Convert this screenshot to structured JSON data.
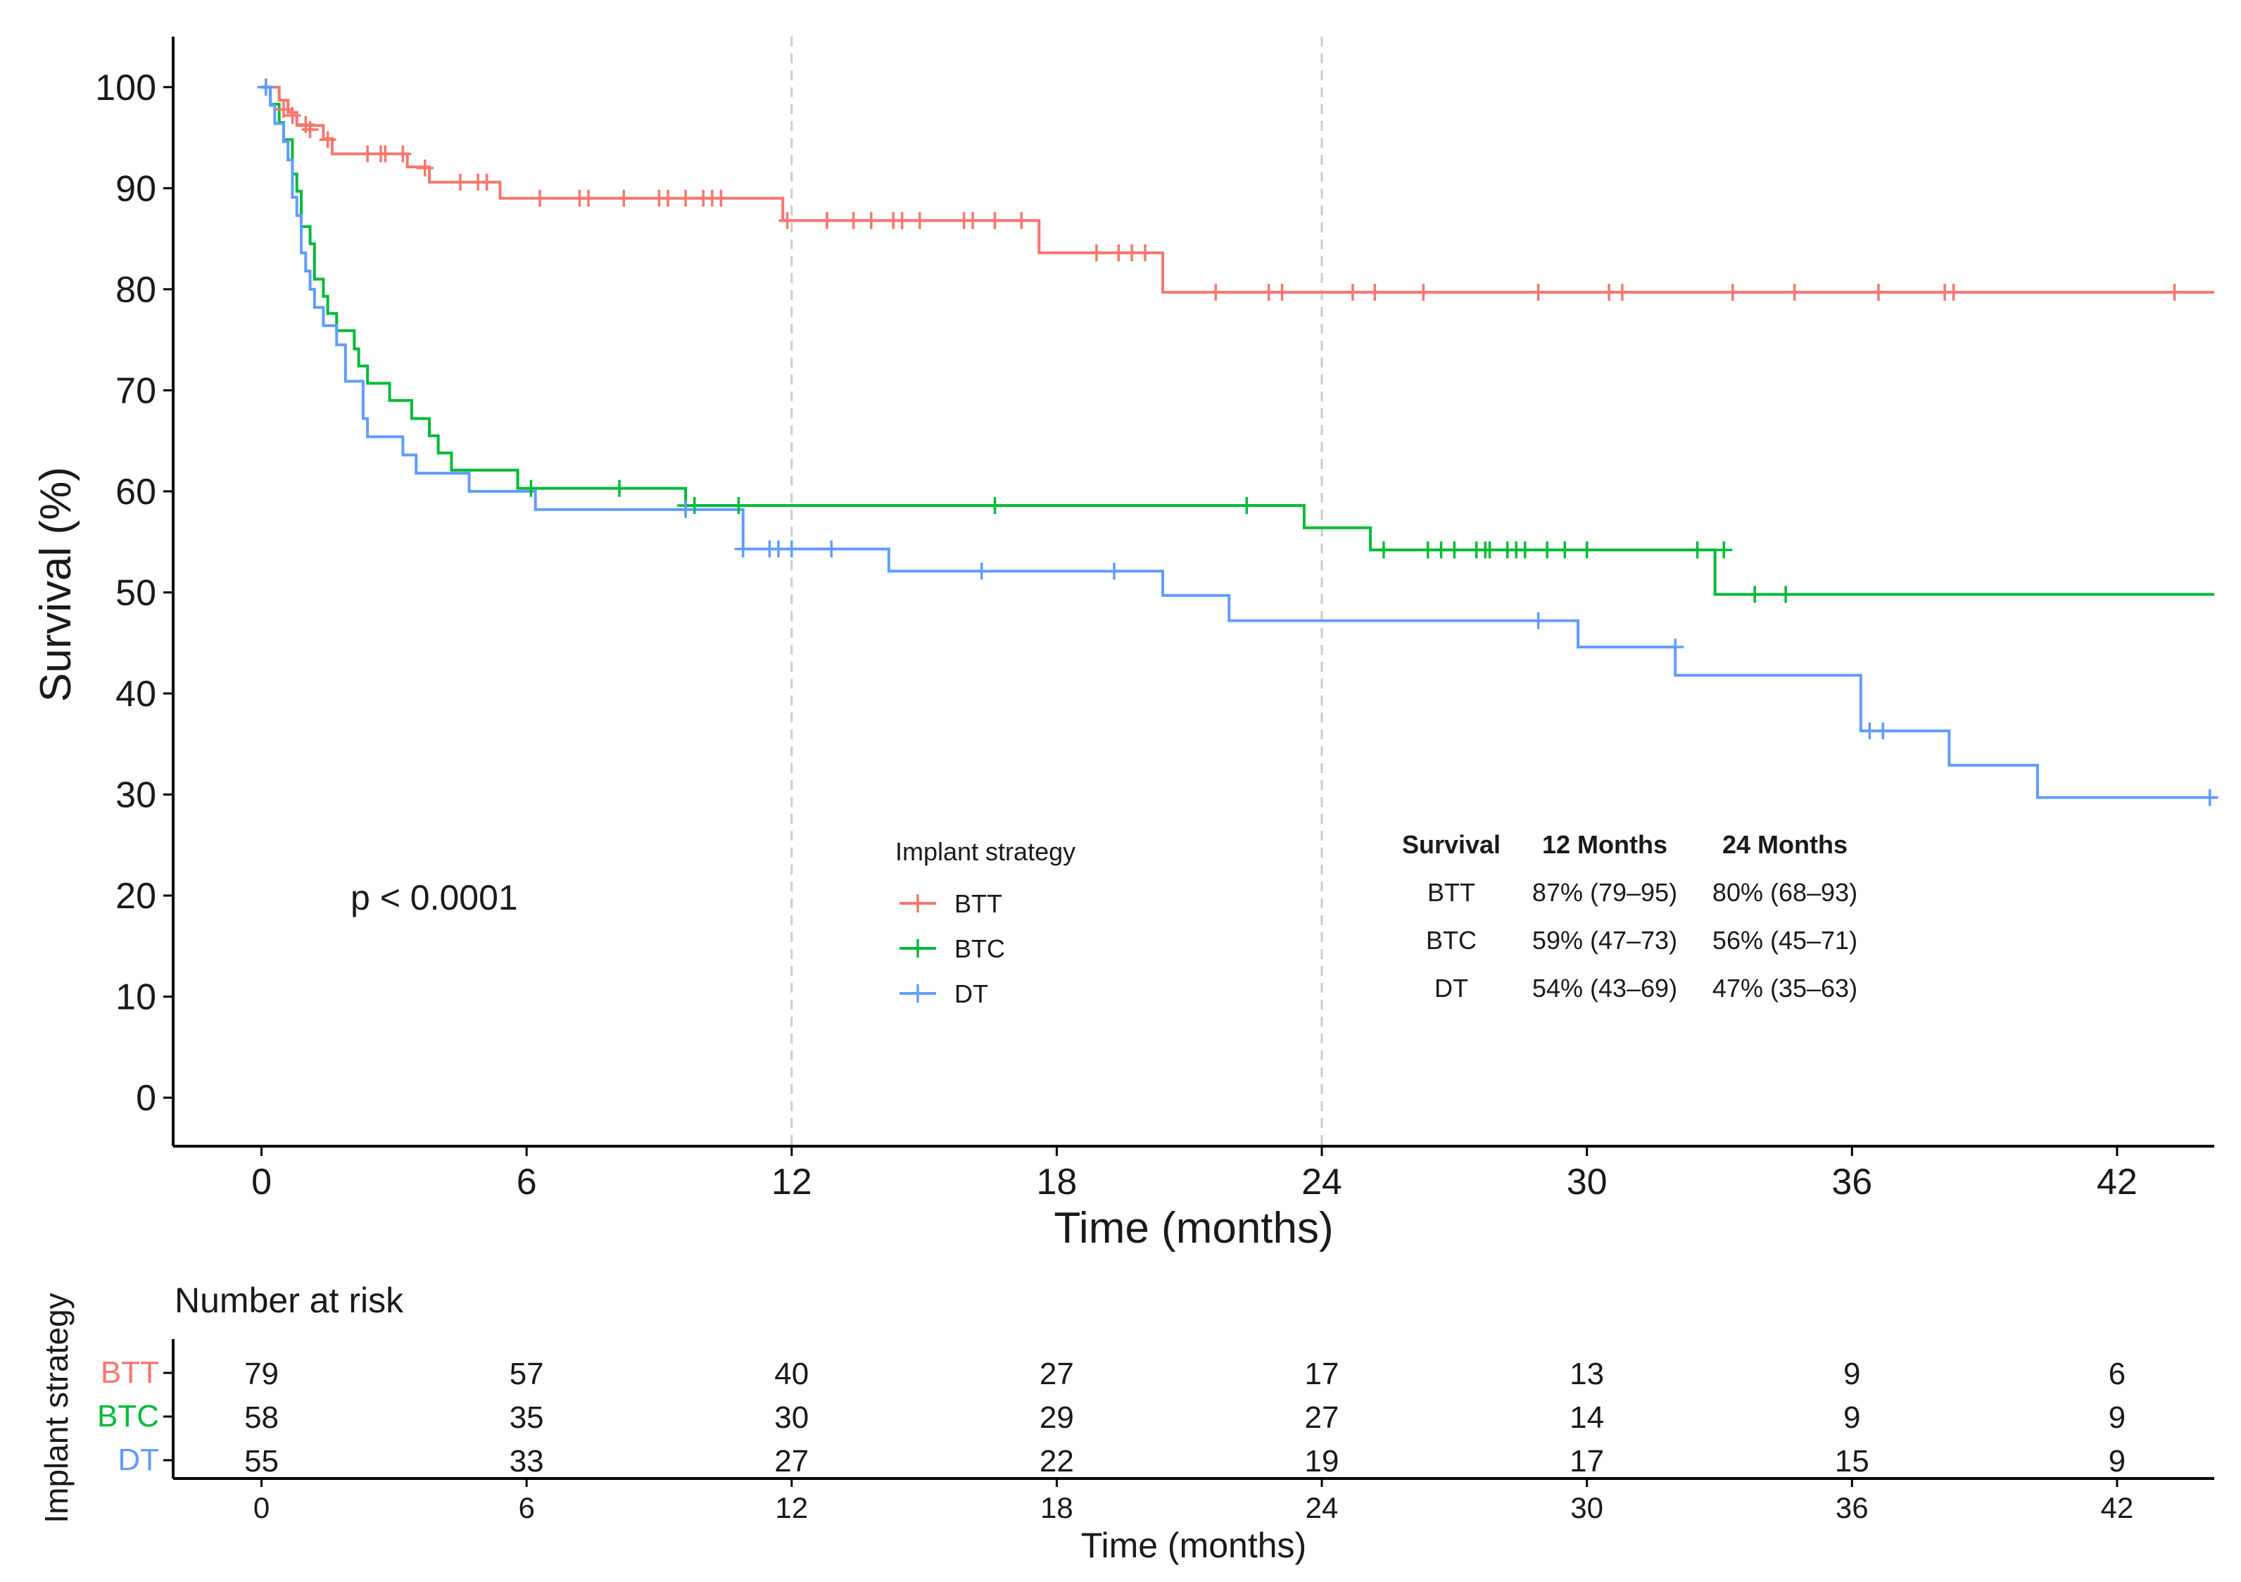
{
  "chart_data": {
    "type": "line",
    "subtype": "kaplan-meier",
    "ylabel": "Survival (%)",
    "xlabel": "Time (months)",
    "xlim": [
      -2,
      44.2
    ],
    "ylim": [
      -4.8,
      105
    ],
    "x_ticks": [
      0,
      6,
      12,
      18,
      24,
      30,
      36,
      42
    ],
    "y_ticks": [
      0,
      10,
      20,
      30,
      40,
      50,
      60,
      70,
      80,
      90,
      100
    ],
    "reference_lines_x": [
      12,
      24
    ],
    "p_value": "p < 0.0001",
    "series": [
      {
        "name": "BTT",
        "color": "#F8766D",
        "steps": [
          [
            0,
            100
          ],
          [
            0.4,
            98.7
          ],
          [
            0.6,
            97.5
          ],
          [
            0.8,
            96.2
          ],
          [
            1.4,
            94.9
          ],
          [
            1.6,
            93.4
          ],
          [
            3.3,
            92.1
          ],
          [
            3.8,
            90.6
          ],
          [
            5.4,
            89
          ],
          [
            11.8,
            86.8
          ],
          [
            17.6,
            83.6
          ],
          [
            20.4,
            79.7
          ],
          [
            44.2,
            79.7
          ]
        ],
        "censored": [
          [
            0.1,
            100
          ],
          [
            0.5,
            97.8
          ],
          [
            0.7,
            97.2
          ],
          [
            1.0,
            96.3
          ],
          [
            1.1,
            95.8
          ],
          [
            1.5,
            94.8
          ],
          [
            2.4,
            93.4
          ],
          [
            2.7,
            93.4
          ],
          [
            2.8,
            93.4
          ],
          [
            3.2,
            93.4
          ],
          [
            3.7,
            92.0
          ],
          [
            4.5,
            90.6
          ],
          [
            4.9,
            90.6
          ],
          [
            5.1,
            90.6
          ],
          [
            6.3,
            89
          ],
          [
            7.2,
            89
          ],
          [
            7.4,
            89
          ],
          [
            8.2,
            89
          ],
          [
            9.0,
            89
          ],
          [
            9.2,
            89
          ],
          [
            9.6,
            89
          ],
          [
            10.0,
            89
          ],
          [
            10.2,
            89
          ],
          [
            10.4,
            89
          ],
          [
            11.9,
            86.8
          ],
          [
            12.8,
            86.8
          ],
          [
            13.4,
            86.8
          ],
          [
            13.8,
            86.8
          ],
          [
            14.3,
            86.8
          ],
          [
            14.5,
            86.8
          ],
          [
            14.9,
            86.8
          ],
          [
            15.9,
            86.8
          ],
          [
            16.1,
            86.8
          ],
          [
            16.6,
            86.8
          ],
          [
            17.2,
            86.8
          ],
          [
            18.9,
            83.6
          ],
          [
            19.4,
            83.6
          ],
          [
            19.7,
            83.6
          ],
          [
            20.0,
            83.6
          ],
          [
            21.6,
            79.7
          ],
          [
            22.8,
            79.7
          ],
          [
            23.1,
            79.7
          ],
          [
            24.7,
            79.7
          ],
          [
            25.2,
            79.7
          ],
          [
            26.3,
            79.7
          ],
          [
            28.9,
            79.7
          ],
          [
            30.5,
            79.7
          ],
          [
            30.8,
            79.7
          ],
          [
            33.3,
            79.7
          ],
          [
            34.7,
            79.7
          ],
          [
            36.6,
            79.7
          ],
          [
            38.1,
            79.7
          ],
          [
            38.3,
            79.7
          ],
          [
            43.3,
            79.7
          ]
        ]
      },
      {
        "name": "BTC",
        "color": "#00BA38",
        "steps": [
          [
            0,
            100
          ],
          [
            0.2,
            98.3
          ],
          [
            0.4,
            96.5
          ],
          [
            0.5,
            94.8
          ],
          [
            0.7,
            91.4
          ],
          [
            0.8,
            89.7
          ],
          [
            0.9,
            86.2
          ],
          [
            1.1,
            84.5
          ],
          [
            1.2,
            81.0
          ],
          [
            1.4,
            79.3
          ],
          [
            1.5,
            77.6
          ],
          [
            1.7,
            75.9
          ],
          [
            2.1,
            74.1
          ],
          [
            2.2,
            72.4
          ],
          [
            2.4,
            70.7
          ],
          [
            2.9,
            69.0
          ],
          [
            3.4,
            67.2
          ],
          [
            3.8,
            65.5
          ],
          [
            4.0,
            63.8
          ],
          [
            4.3,
            62.1
          ],
          [
            5.8,
            60.3
          ],
          [
            9.6,
            58.6
          ],
          [
            23.6,
            56.4
          ],
          [
            25.1,
            54.2
          ],
          [
            32.9,
            49.8
          ],
          [
            44.2,
            49.8
          ]
        ],
        "censored": [
          [
            0.1,
            100
          ],
          [
            6.1,
            60.3
          ],
          [
            8.1,
            60.3
          ],
          [
            9.6,
            58.6
          ],
          [
            9.8,
            58.6
          ],
          [
            10.8,
            58.6
          ],
          [
            16.6,
            58.6
          ],
          [
            22.3,
            58.6
          ],
          [
            25.4,
            54.2
          ],
          [
            26.4,
            54.2
          ],
          [
            26.7,
            54.2
          ],
          [
            27.0,
            54.2
          ],
          [
            27.5,
            54.2
          ],
          [
            27.7,
            54.2
          ],
          [
            27.8,
            54.2
          ],
          [
            28.2,
            54.2
          ],
          [
            28.4,
            54.2
          ],
          [
            28.6,
            54.2
          ],
          [
            29.1,
            54.2
          ],
          [
            29.5,
            54.2
          ],
          [
            30.0,
            54.2
          ],
          [
            32.5,
            54.2
          ],
          [
            33.1,
            54.2
          ],
          [
            33.8,
            49.8
          ],
          [
            34.5,
            49.8
          ]
        ]
      },
      {
        "name": "DT",
        "color": "#619CFF",
        "steps": [
          [
            0,
            100
          ],
          [
            0.2,
            98.2
          ],
          [
            0.3,
            96.4
          ],
          [
            0.5,
            94.6
          ],
          [
            0.6,
            92.8
          ],
          [
            0.7,
            89.1
          ],
          [
            0.8,
            87.3
          ],
          [
            0.9,
            83.6
          ],
          [
            1.0,
            81.8
          ],
          [
            1.1,
            80.0
          ],
          [
            1.2,
            78.2
          ],
          [
            1.4,
            76.4
          ],
          [
            1.7,
            74.5
          ],
          [
            1.9,
            70.9
          ],
          [
            2.3,
            67.2
          ],
          [
            2.4,
            65.4
          ],
          [
            3.2,
            63.6
          ],
          [
            3.5,
            61.8
          ],
          [
            4.7,
            60.0
          ],
          [
            6.2,
            58.2
          ],
          [
            10.9,
            54.3
          ],
          [
            14.2,
            52.1
          ],
          [
            20.4,
            49.7
          ],
          [
            21.9,
            47.2
          ],
          [
            29.8,
            44.6
          ],
          [
            32.0,
            41.8
          ],
          [
            36.2,
            36.3
          ],
          [
            38.2,
            32.9
          ],
          [
            40.2,
            29.7
          ],
          [
            44.2,
            29.7
          ]
        ],
        "censored": [
          [
            0.1,
            100
          ],
          [
            9.6,
            58.2
          ],
          [
            10.9,
            54.3
          ],
          [
            11.5,
            54.3
          ],
          [
            11.7,
            54.3
          ],
          [
            12.0,
            54.3
          ],
          [
            12.9,
            54.3
          ],
          [
            16.3,
            52.1
          ],
          [
            19.3,
            52.1
          ],
          [
            28.9,
            47.2
          ],
          [
            32.0,
            44.6
          ],
          [
            36.4,
            36.3
          ],
          [
            36.7,
            36.3
          ],
          [
            44.1,
            29.7
          ]
        ]
      }
    ],
    "legend": {
      "title": "Implant strategy",
      "placement": "center-bottom",
      "items": [
        "BTT",
        "BTC",
        "DT"
      ]
    },
    "survival_table": {
      "headers": [
        "Survival",
        "12 Months",
        "24 Months"
      ],
      "rows": [
        [
          "BTT",
          "87% (79–95)",
          "80% (68–93)"
        ],
        [
          "BTC",
          "59% (47–73)",
          "56% (45–71)"
        ],
        [
          "DT",
          "54% (43–69)",
          "47% (35–63)"
        ]
      ]
    },
    "risk_table": {
      "title": "Number at risk",
      "ylabel": "Implant strategy",
      "xlabel": "Time (months)",
      "times": [
        0,
        6,
        12,
        18,
        24,
        30,
        36,
        42
      ],
      "rows": [
        {
          "name": "BTT",
          "color": "#F8766D",
          "values": [
            79,
            57,
            40,
            27,
            17,
            13,
            9,
            6
          ]
        },
        {
          "name": "BTC",
          "color": "#00BA38",
          "values": [
            58,
            35,
            30,
            29,
            27,
            14,
            9,
            9
          ]
        },
        {
          "name": "DT",
          "color": "#619CFF",
          "values": [
            55,
            33,
            27,
            22,
            19,
            17,
            15,
            9
          ]
        }
      ]
    }
  }
}
